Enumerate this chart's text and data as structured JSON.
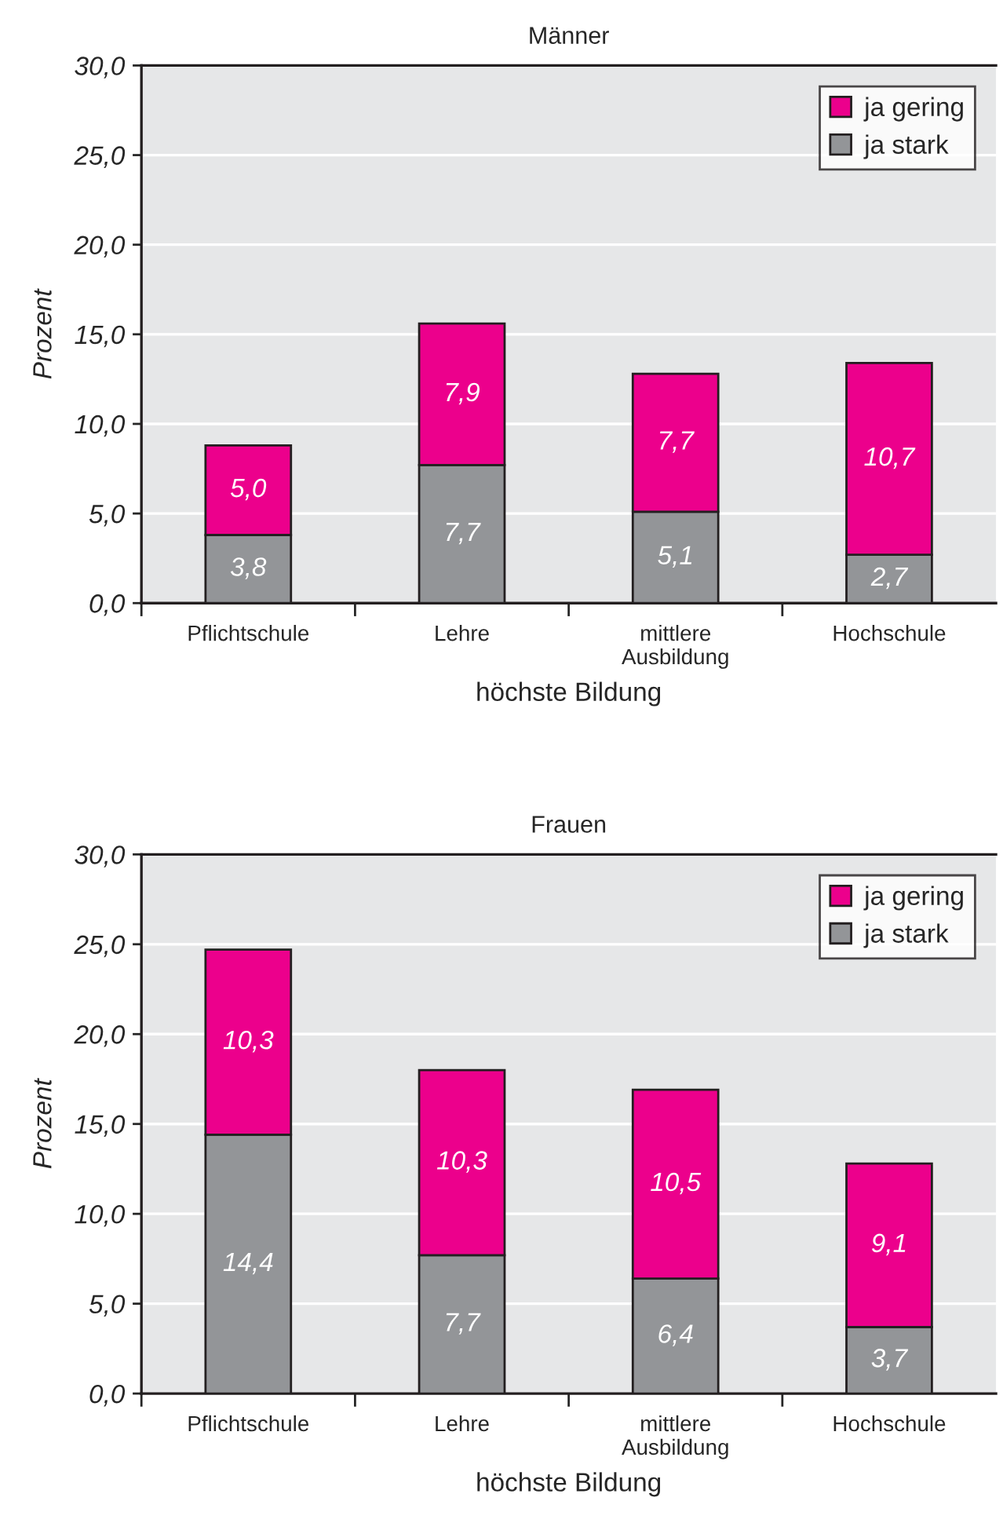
{
  "chart_data": [
    {
      "type": "bar",
      "title": "Männer",
      "xlabel": "höchste Bildung",
      "ylabel": "Prozent",
      "categories": [
        "Pflichtschule",
        "Lehre",
        "mittlere\nAusbildung",
        "Hochschule"
      ],
      "stacked": true,
      "ylim": [
        0,
        30
      ],
      "yticks": [
        {
          "value": 0,
          "label": "0,0"
        },
        {
          "value": 5,
          "label": "5,0"
        },
        {
          "value": 10,
          "label": "10,0"
        },
        {
          "value": 15,
          "label": "15,0"
        },
        {
          "value": 20,
          "label": "20,0"
        },
        {
          "value": 25,
          "label": "25,0"
        },
        {
          "value": 30,
          "label": "30,0"
        }
      ],
      "grid": "y",
      "legend": "top right",
      "series": [
        {
          "name": "ja stark",
          "color": "#939598",
          "values": [
            3.8,
            7.7,
            5.1,
            2.7
          ],
          "value_labels": [
            "3,8",
            "7,7",
            "5,1",
            "2,7"
          ]
        },
        {
          "name": "ja gering",
          "color": "#ec008c",
          "values": [
            5.0,
            7.9,
            7.7,
            10.7
          ],
          "value_labels": [
            "5,0",
            "7,9",
            "7,7",
            "10,7"
          ]
        }
      ]
    },
    {
      "type": "bar",
      "title": "Frauen",
      "xlabel": "höchste Bildung",
      "ylabel": "Prozent",
      "categories": [
        "Pflichtschule",
        "Lehre",
        "mittlere\nAusbildung",
        "Hochschule"
      ],
      "stacked": true,
      "ylim": [
        0,
        30
      ],
      "yticks": [
        {
          "value": 0,
          "label": "0,0"
        },
        {
          "value": 5,
          "label": "5,0"
        },
        {
          "value": 10,
          "label": "10,0"
        },
        {
          "value": 15,
          "label": "15,0"
        },
        {
          "value": 20,
          "label": "20,0"
        },
        {
          "value": 25,
          "label": "25,0"
        },
        {
          "value": 30,
          "label": "30,0"
        }
      ],
      "grid": "y",
      "legend": "top right",
      "series": [
        {
          "name": "ja stark",
          "color": "#939598",
          "values": [
            14.4,
            7.7,
            6.4,
            3.7
          ],
          "value_labels": [
            "14,4",
            "7,7",
            "6,4",
            "3,7"
          ]
        },
        {
          "name": "ja gering",
          "color": "#ec008c",
          "values": [
            10.3,
            10.3,
            10.5,
            9.1
          ],
          "value_labels": [
            "10,3",
            "10,3",
            "10,5",
            "9,1"
          ]
        }
      ]
    }
  ]
}
